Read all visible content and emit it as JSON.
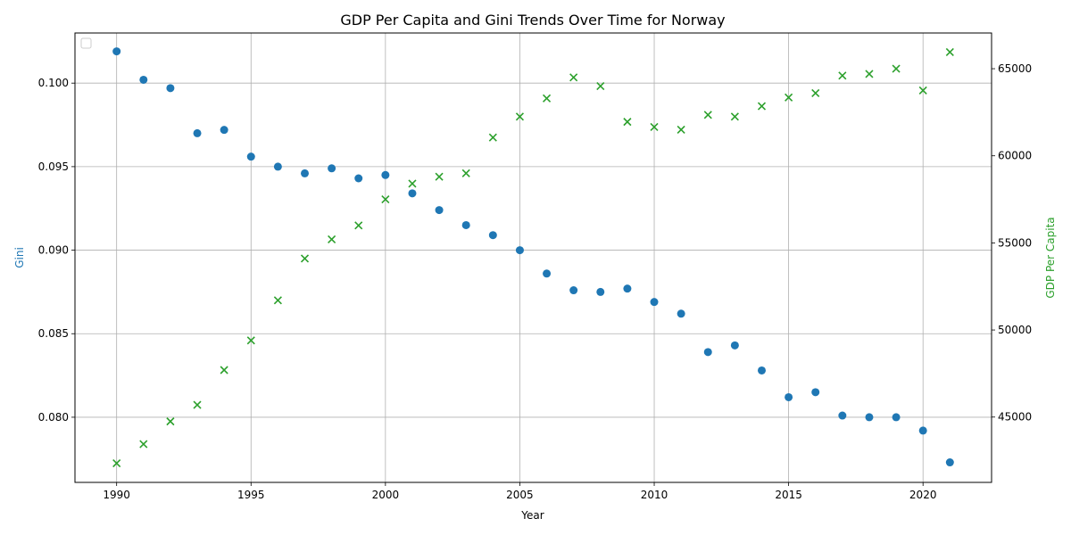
{
  "chart_data": {
    "type": "scatter",
    "title": "GDP Per Capita and Gini Trends Over Time for Norway",
    "xlabel": "Year",
    "ylabel_left": "Gini",
    "ylabel_right": "GDP Per Capita",
    "xlim": [
      1988.45,
      2022.55
    ],
    "ylim_left": [
      0.0761,
      0.103
    ],
    "ylim_right": [
      41250,
      67050
    ],
    "x_ticks": [
      1990,
      1995,
      2000,
      2005,
      2010,
      2015,
      2020
    ],
    "y_ticks_left": [
      "0.080",
      "0.085",
      "0.090",
      "0.095",
      "0.100"
    ],
    "y_ticks_left_values": [
      0.08,
      0.085,
      0.09,
      0.095,
      0.1
    ],
    "y_ticks_right": [
      "45000",
      "50000",
      "55000",
      "60000",
      "65000"
    ],
    "y_ticks_right_values": [
      45000,
      50000,
      55000,
      60000,
      65000
    ],
    "grid": true,
    "legend": "upper-left (empty)",
    "x": [
      1990,
      1991,
      1992,
      1993,
      1994,
      1995,
      1996,
      1997,
      1998,
      1999,
      2000,
      2001,
      2002,
      2003,
      2004,
      2005,
      2006,
      2007,
      2008,
      2009,
      2010,
      2011,
      2012,
      2013,
      2014,
      2015,
      2016,
      2017,
      2018,
      2019,
      2020,
      2021
    ],
    "series": [
      {
        "name": "Gini",
        "axis": "left",
        "marker": "circle",
        "color": "#1f77b4",
        "values": [
          0.1019,
          0.1002,
          0.0997,
          0.097,
          0.0972,
          0.0956,
          0.095,
          0.0946,
          0.0949,
          0.0943,
          0.0945,
          0.0934,
          0.0924,
          0.0915,
          0.0909,
          0.09,
          0.0886,
          0.0876,
          0.0875,
          0.0877,
          0.0869,
          0.0862,
          0.0839,
          0.0843,
          0.0828,
          0.0812,
          0.0815,
          0.0801,
          0.08,
          0.08,
          0.0792,
          0.0773
        ]
      },
      {
        "name": "GDP Per Capita",
        "axis": "right",
        "marker": "x",
        "color": "#2ca02c",
        "values": [
          42350,
          43450,
          44750,
          45700,
          47700,
          49400,
          51700,
          54100,
          55200,
          56000,
          57500,
          58400,
          58800,
          59000,
          61050,
          62250,
          63300,
          64500,
          64000,
          61950,
          61650,
          61500,
          62350,
          62250,
          62850,
          63350,
          63600,
          64600,
          64700,
          65000,
          63750,
          65950
        ]
      }
    ]
  }
}
